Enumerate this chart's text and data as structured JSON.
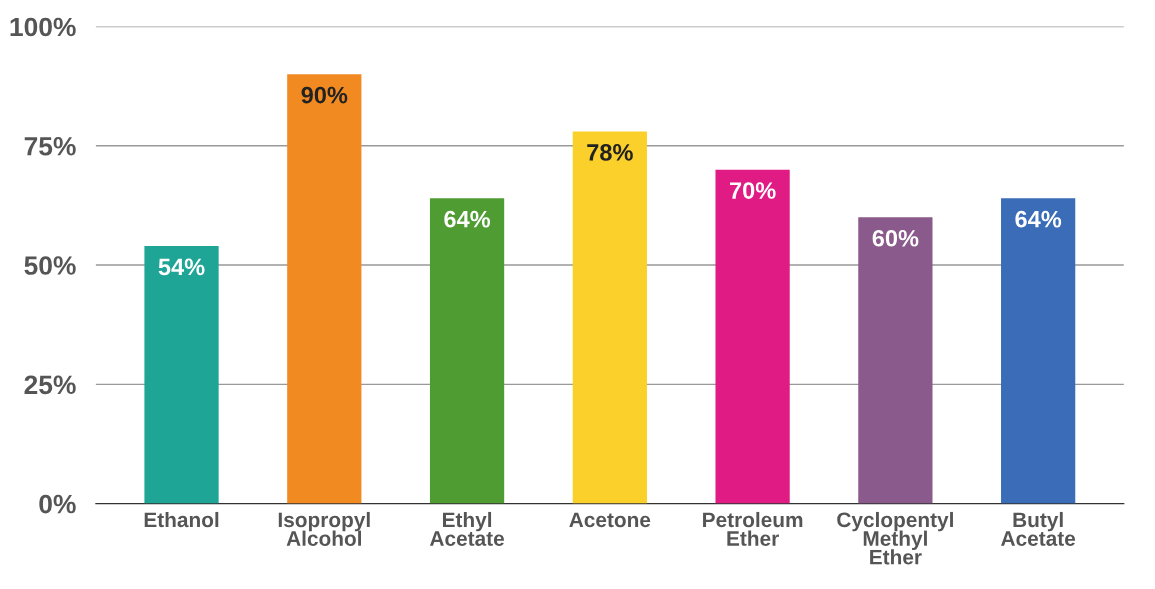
{
  "chart_data": {
    "type": "bar",
    "categories": [
      "Ethanol",
      "Isopropyl\nAlcohol",
      "Ethyl\nAcetate",
      "Acetone",
      "Petroleum\nEther",
      "Cyclopentyl\nMethyl\nEther",
      "Butyl\nAcetate"
    ],
    "values": [
      54,
      90,
      64,
      78,
      70,
      60,
      64
    ],
    "colors": [
      "#1fa596",
      "#f28a22",
      "#4f9c32",
      "#fcd02a",
      "#e01b84",
      "#8a5a8c",
      "#3b6cb8"
    ],
    "ylim": [
      0,
      100
    ],
    "yticks": [
      {
        "value": 0,
        "label": "0%"
      },
      {
        "value": 25,
        "label": "25%"
      },
      {
        "value": 50,
        "label": "50%"
      },
      {
        "value": 75,
        "label": "75%"
      },
      {
        "value": 100,
        "label": "100%"
      }
    ],
    "grid": "y",
    "value_labels": [
      "54%",
      "90%",
      "64%",
      "78%",
      "70%",
      "60%",
      "64%"
    ]
  }
}
